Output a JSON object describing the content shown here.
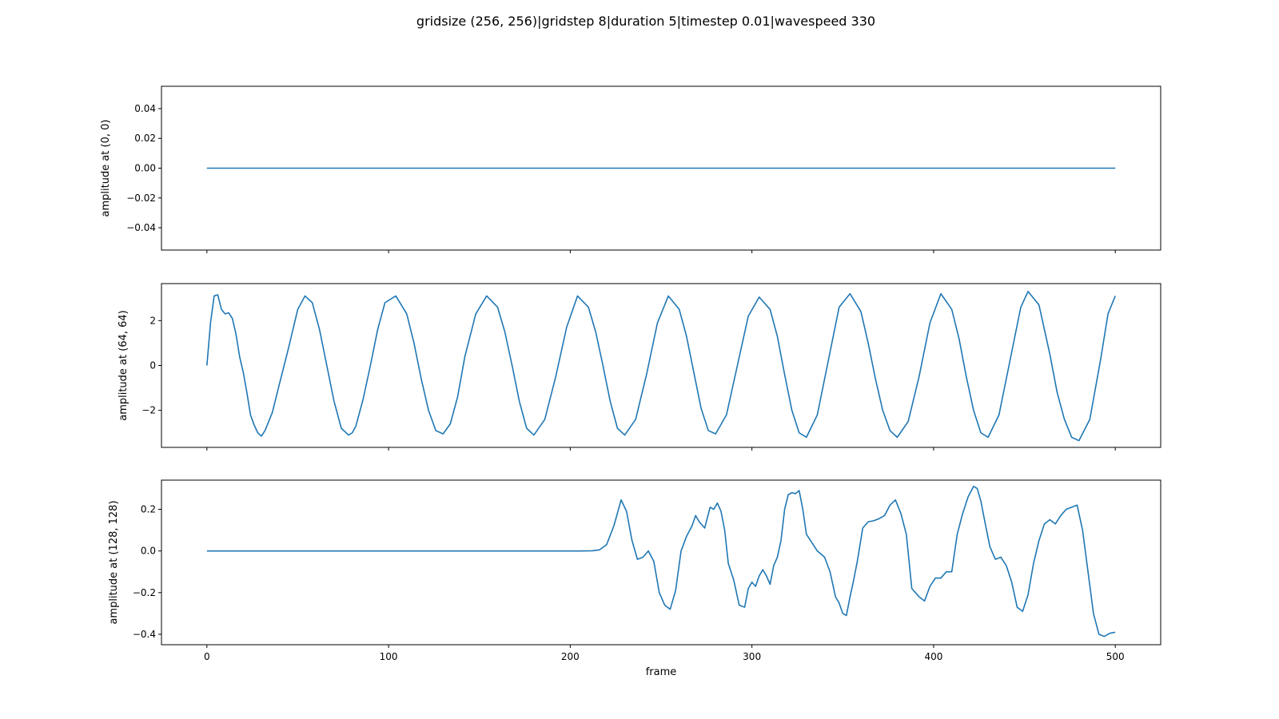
{
  "figure": {
    "suptitle": "gridsize (256, 256)|gridstep 8|duration 5|timestep 0.01|wavespeed 330",
    "xlabel": "frame"
  },
  "chart_data": [
    {
      "type": "line",
      "ylabel": "amplitude at (0, 0)",
      "xlim": [
        -25,
        525
      ],
      "ylim": [
        -0.055,
        0.055
      ],
      "xticks": [
        0,
        100,
        200,
        300,
        400,
        500
      ],
      "yticks": [
        -0.04,
        -0.02,
        0.0,
        0.02,
        0.04
      ],
      "ytick_labels": [
        "−0.04",
        "−0.02",
        "0.00",
        "0.02",
        "0.04"
      ],
      "show_xtick_labels": false,
      "line_color": "#1f77b4",
      "series": [
        {
          "x": [
            0,
            500
          ],
          "y": [
            0,
            0
          ]
        }
      ]
    },
    {
      "type": "line",
      "ylabel": "amplitude at (64, 64)",
      "xlim": [
        -25,
        525
      ],
      "ylim": [
        -3.65,
        3.65
      ],
      "xticks": [
        0,
        100,
        200,
        300,
        400,
        500
      ],
      "yticks": [
        -2,
        0,
        2
      ],
      "ytick_labels": [
        "−2",
        "0",
        "2"
      ],
      "show_xtick_labels": false,
      "line_color": "#1f77b4",
      "series": [
        {
          "x": [
            0,
            2,
            4,
            6,
            8,
            10,
            12,
            14,
            16,
            18,
            20,
            22,
            24,
            26,
            28,
            30,
            32,
            34,
            36,
            40,
            45,
            50,
            54,
            58,
            62,
            66,
            70,
            74,
            78,
            80,
            82,
            86,
            90,
            94,
            98,
            104,
            110,
            114,
            118,
            122,
            126,
            130,
            134,
            138,
            142,
            148,
            154,
            160,
            164,
            168,
            172,
            176,
            180,
            186,
            192,
            198,
            204,
            210,
            214,
            218,
            222,
            226,
            230,
            236,
            242,
            248,
            254,
            260,
            264,
            268,
            272,
            276,
            280,
            286,
            292,
            298,
            304,
            310,
            314,
            318,
            322,
            326,
            330,
            336,
            342,
            348,
            354,
            360,
            364,
            368,
            372,
            376,
            380,
            386,
            392,
            398,
            404,
            410,
            414,
            418,
            422,
            426,
            430,
            436,
            442,
            448,
            452,
            458,
            464,
            468,
            472,
            476,
            480,
            486,
            492,
            496,
            500
          ],
          "y": [
            0.0,
            1.9,
            3.1,
            3.15,
            2.5,
            2.3,
            2.35,
            2.1,
            1.4,
            0.4,
            -0.3,
            -1.2,
            -2.2,
            -2.65,
            -3.0,
            -3.15,
            -2.9,
            -2.5,
            -2.1,
            -0.8,
            0.8,
            2.5,
            3.1,
            2.8,
            1.6,
            0.0,
            -1.6,
            -2.8,
            -3.1,
            -3.0,
            -2.7,
            -1.5,
            0.0,
            1.6,
            2.8,
            3.1,
            2.3,
            1.0,
            -0.6,
            -2.0,
            -2.9,
            -3.05,
            -2.6,
            -1.4,
            0.4,
            2.3,
            3.1,
            2.6,
            1.5,
            0.0,
            -1.6,
            -2.8,
            -3.1,
            -2.4,
            -0.5,
            1.7,
            3.1,
            2.6,
            1.5,
            0.0,
            -1.6,
            -2.8,
            -3.1,
            -2.4,
            -0.4,
            1.9,
            3.1,
            2.5,
            1.3,
            -0.3,
            -1.9,
            -2.9,
            -3.05,
            -2.2,
            0.0,
            2.2,
            3.05,
            2.5,
            1.3,
            -0.4,
            -2.0,
            -3.0,
            -3.2,
            -2.2,
            0.2,
            2.6,
            3.2,
            2.4,
            1.0,
            -0.6,
            -2.0,
            -2.9,
            -3.2,
            -2.5,
            -0.5,
            1.9,
            3.2,
            2.5,
            1.2,
            -0.5,
            -2.0,
            -3.0,
            -3.2,
            -2.2,
            0.2,
            2.6,
            3.3,
            2.7,
            0.5,
            -1.2,
            -2.4,
            -3.2,
            -3.35,
            -2.4,
            0.3,
            2.3,
            3.1
          ]
        }
      ]
    },
    {
      "type": "line",
      "ylabel": "amplitude at (128, 128)",
      "xlabel": "frame",
      "xlim": [
        -25,
        525
      ],
      "ylim": [
        -0.45,
        0.34
      ],
      "xticks": [
        0,
        100,
        200,
        300,
        400,
        500
      ],
      "xtick_labels": [
        "0",
        "100",
        "200",
        "300",
        "400",
        "500"
      ],
      "yticks": [
        -0.4,
        -0.2,
        0.0,
        0.2
      ],
      "ytick_labels": [
        "−0.4",
        "−0.2",
        "0.0",
        "0.2"
      ],
      "show_xtick_labels": true,
      "line_color": "#1f77b4",
      "series": [
        {
          "x": [
            0,
            205,
            212,
            216,
            220,
            224,
            228,
            231,
            234,
            237,
            240,
            243,
            246,
            249,
            252,
            255,
            258,
            261,
            264,
            267,
            269,
            271,
            274,
            277,
            279,
            281,
            283,
            285,
            287,
            290,
            293,
            296,
            298,
            300,
            302,
            304,
            306,
            308,
            310,
            312,
            314,
            316,
            318,
            320,
            322,
            324,
            326,
            328,
            330,
            333,
            336,
            340,
            343,
            346,
            348,
            350,
            352,
            354,
            356,
            358,
            361,
            364,
            367,
            370,
            373,
            376,
            379,
            382,
            385,
            388,
            390,
            392,
            395,
            398,
            401,
            404,
            407,
            410,
            413,
            416,
            419,
            422,
            424,
            426,
            428,
            431,
            434,
            437,
            440,
            443,
            446,
            449,
            452,
            455,
            458,
            461,
            464,
            467,
            470,
            473,
            476,
            479,
            482,
            485,
            488,
            491,
            494,
            497,
            500
          ],
          "y": [
            0.0,
            0.0,
            0.001,
            0.005,
            0.03,
            0.12,
            0.245,
            0.19,
            0.05,
            -0.04,
            -0.03,
            0.0,
            -0.05,
            -0.2,
            -0.26,
            -0.28,
            -0.19,
            0.0,
            0.07,
            0.12,
            0.17,
            0.14,
            0.11,
            0.21,
            0.2,
            0.23,
            0.19,
            0.1,
            -0.06,
            -0.14,
            -0.26,
            -0.27,
            -0.18,
            -0.15,
            -0.17,
            -0.12,
            -0.09,
            -0.12,
            -0.16,
            -0.07,
            -0.03,
            0.05,
            0.2,
            0.27,
            0.28,
            0.275,
            0.29,
            0.2,
            0.08,
            0.04,
            0.0,
            -0.03,
            -0.1,
            -0.22,
            -0.25,
            -0.3,
            -0.31,
            -0.22,
            -0.14,
            -0.05,
            0.11,
            0.14,
            0.145,
            0.155,
            0.17,
            0.22,
            0.245,
            0.18,
            0.08,
            -0.18,
            -0.2,
            -0.22,
            -0.24,
            -0.17,
            -0.13,
            -0.13,
            -0.1,
            -0.1,
            0.08,
            0.18,
            0.26,
            0.31,
            0.3,
            0.24,
            0.15,
            0.02,
            -0.04,
            -0.03,
            -0.07,
            -0.15,
            -0.27,
            -0.29,
            -0.21,
            -0.06,
            0.05,
            0.13,
            0.15,
            0.13,
            0.17,
            0.2,
            0.21,
            0.22,
            0.1,
            -0.1,
            -0.3,
            -0.4,
            -0.41,
            -0.395,
            -0.39
          ]
        }
      ]
    }
  ]
}
